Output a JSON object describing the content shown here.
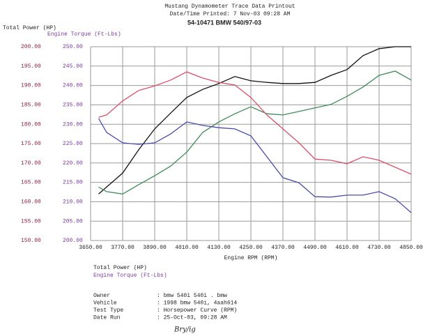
{
  "chart_data": {
    "type": "line",
    "title": "Mustang Dynamometer Trace Data Printout",
    "subtitle": "Date/Time Printed: 7 Nov-03 09:28 AM",
    "run_label": "54-10471 BMW 540/97-03",
    "ylabel": "Total Power (HP)",
    "y2label": "Engine Torque (Ft-Lbs)",
    "xlabel": "Engine RPM (RPM)",
    "x": [
      3680,
      3710,
      3770,
      3830,
      3890,
      3950,
      4010,
      4070,
      4130,
      4190,
      4250,
      4310,
      4370,
      4430,
      4490,
      4550,
      4610,
      4670,
      4730,
      4790,
      4850
    ],
    "series": [
      {
        "color": "#111111",
        "values": [
          162.0,
          163.8,
          167.4,
          173.4,
          178.8,
          182.9,
          186.9,
          189.0,
          190.5,
          192.3,
          191.2,
          190.8,
          190.5,
          190.5,
          190.8,
          192.6,
          194.1,
          197.7,
          199.5,
          200,
          200
        ]
      },
      {
        "color": "#3f8a5a",
        "values": [
          163.8,
          162.6,
          162.0,
          164.4,
          166.7,
          169.2,
          172.8,
          177.9,
          180.6,
          182.7,
          184.5,
          182.7,
          182.4,
          183.3,
          184.2,
          185.1,
          187.2,
          189.6,
          192.6,
          193.7,
          191.4
        ]
      },
      {
        "color": "#d8506a",
        "axis": "y2",
        "values": [
          231.8,
          232.4,
          236.0,
          238.7,
          239.9,
          241.4,
          243.5,
          241.9,
          240.8,
          240.1,
          236.9,
          232.4,
          228.8,
          225.2,
          221.0,
          220.7,
          219.8,
          221.6,
          220.7,
          218.9,
          217.1
        ]
      },
      {
        "color": "#4a4aa8",
        "axis": "y2",
        "values": [
          231.5,
          227.9,
          225.2,
          224.8,
          225.2,
          227.5,
          230.6,
          229.7,
          229.1,
          228.8,
          227.0,
          221.6,
          216.2,
          214.9,
          211.3,
          211.2,
          211.7,
          211.7,
          212.6,
          210.8,
          207.2
        ]
      }
    ],
    "xlim": [
      3650,
      4850
    ],
    "xticks": [
      {
        "value": 3650,
        "label": "3650.00"
      },
      {
        "value": 3770,
        "label": "3770.00"
      },
      {
        "value": 3890,
        "label": "3890.00"
      },
      {
        "value": 4010,
        "label": "4010.00"
      },
      {
        "value": 4130,
        "label": "4130.00"
      },
      {
        "value": 4250,
        "label": "4250.00"
      },
      {
        "value": 4370,
        "label": "4370.00"
      },
      {
        "value": 4490,
        "label": "4490.00"
      },
      {
        "value": 4610,
        "label": "4610.00"
      },
      {
        "value": 4730,
        "label": "4730.00"
      },
      {
        "value": 4850,
        "label": "4850.00"
      }
    ],
    "ylim": [
      150,
      200
    ],
    "yticks": [
      {
        "value": 150,
        "label": "150.00"
      },
      {
        "value": 155,
        "label": "155.00"
      },
      {
        "value": 160,
        "label": "160.00"
      },
      {
        "value": 165,
        "label": "165.00"
      },
      {
        "value": 170,
        "label": "170.00"
      },
      {
        "value": 175,
        "label": "175.00"
      },
      {
        "value": 180,
        "label": "180.00"
      },
      {
        "value": 185,
        "label": "185.00"
      },
      {
        "value": 190,
        "label": "190.00"
      },
      {
        "value": 195,
        "label": "195.00"
      },
      {
        "value": 200,
        "label": "200.00"
      }
    ],
    "y2lim": [
      200,
      250
    ],
    "y2ticks": [
      {
        "value": 200,
        "label": "200.00"
      },
      {
        "value": 205,
        "label": "205.00"
      },
      {
        "value": 210,
        "label": "210.00"
      },
      {
        "value": 215,
        "label": "215.00"
      },
      {
        "value": 220,
        "label": "220.00"
      },
      {
        "value": 225,
        "label": "225.00"
      },
      {
        "value": 230,
        "label": "230.00"
      },
      {
        "value": 235,
        "label": "235.00"
      },
      {
        "value": 240,
        "label": "240.00"
      },
      {
        "value": 245,
        "label": "245.00"
      },
      {
        "value": 250,
        "label": "250.00"
      }
    ],
    "grid": true,
    "y_color": "#8a2040",
    "y2_color": "#7a3a9a"
  },
  "details": [
    [
      "Owner",
      ": bmw 540i 540i . bmw"
    ],
    [
      "Vehicle",
      ": 1998 bmw 540i, 4aah614"
    ],
    [
      "Test Type",
      ": Horsepower Curve (RPM)"
    ],
    [
      "Date Run",
      ": 25-Oct-03, 09:28 AM"
    ]
  ],
  "signature": "Bry/ig"
}
